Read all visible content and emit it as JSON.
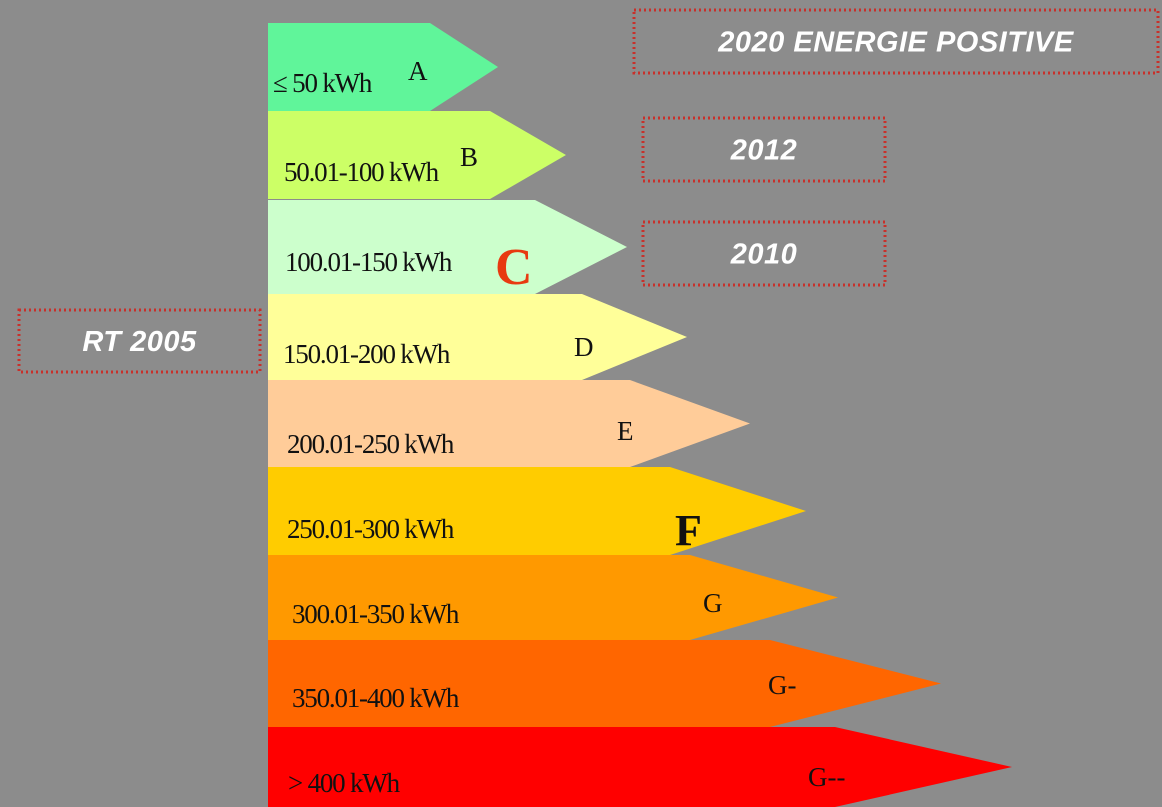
{
  "bands": [
    {
      "range": "≤ 50 kWh",
      "letter": "A"
    },
    {
      "range": "50.01-100 kWh",
      "letter": "B"
    },
    {
      "range": "100.01-150 kWh",
      "letter": "C"
    },
    {
      "range": "150.01-200 kWh",
      "letter": "D"
    },
    {
      "range": "200.01-250 kWh",
      "letter": "E"
    },
    {
      "range": "250.01-300 kWh",
      "letter": "F"
    },
    {
      "range": "300.01-350 kWh",
      "letter": "G"
    },
    {
      "range": "350.01-400 kWh",
      "letter": "G-"
    },
    {
      "range": "> 400 kWh",
      "letter": "G--"
    }
  ],
  "tags": [
    "2020 ENERGIE POSITIVE",
    "2012",
    "2010",
    "RT 2005"
  ]
}
